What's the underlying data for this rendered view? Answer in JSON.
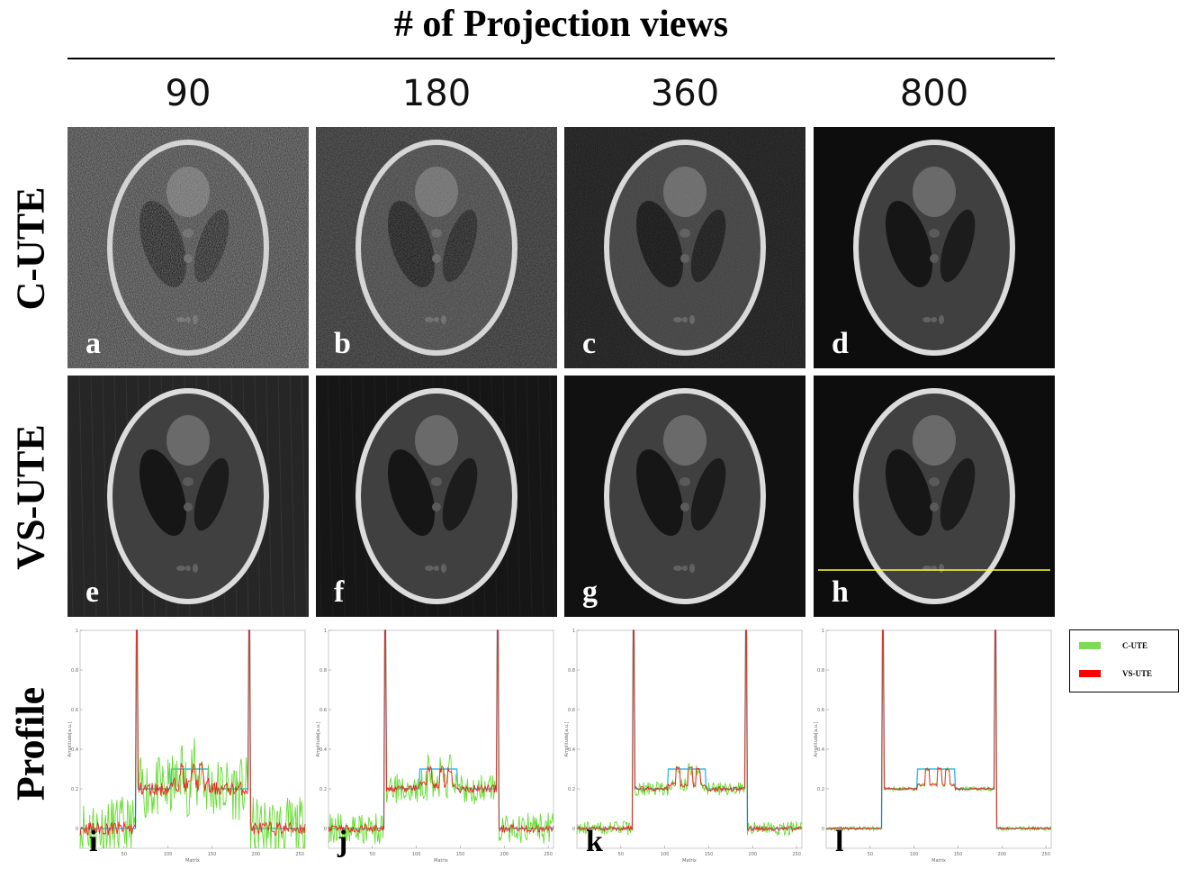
{
  "figure": {
    "title": "# of Projection views",
    "columns": [
      "90",
      "180",
      "360",
      "800"
    ],
    "rows": [
      "C-UTE",
      "VS-UTE",
      "Profile"
    ],
    "panel_letters": [
      "a",
      "b",
      "c",
      "d",
      "e",
      "f",
      "g",
      "h",
      "i",
      "j",
      "k",
      "l"
    ],
    "legend": {
      "items": [
        {
          "label": "C-UTE",
          "color": "#7ed957"
        },
        {
          "label": "VS-UTE",
          "color": "#ff0000"
        }
      ]
    }
  },
  "plot_axes": {
    "y_ticks": [
      "0",
      "0.2",
      "0.4",
      "0.6",
      "0.8",
      "1"
    ],
    "x_ticks": [
      "50",
      "100",
      "150",
      "200",
      "250"
    ],
    "xlabel": "Matrix",
    "ylabel": "Amplitude[a.u.]",
    "xlim": [
      0,
      256
    ],
    "ylim": [
      -0.1,
      1.0
    ]
  },
  "colors": {
    "c_ute": "#66dd33",
    "vs_ute": "#ee2222",
    "reference": "#33bbee"
  },
  "chart_data": [
    {
      "type": "line",
      "title": "i",
      "noise_green": 0.16,
      "noise_red": 0.035,
      "x": [
        0,
        256
      ],
      "series": [
        {
          "name": "C-UTE"
        },
        {
          "name": "VS-UTE"
        }
      ]
    },
    {
      "type": "line",
      "title": "j",
      "noise_green": 0.08,
      "noise_red": 0.02,
      "x": [
        0,
        256
      ],
      "series": [
        {
          "name": "C-UTE"
        },
        {
          "name": "VS-UTE"
        }
      ]
    },
    {
      "type": "line",
      "title": "k",
      "noise_green": 0.035,
      "noise_red": 0.012,
      "x": [
        0,
        256
      ],
      "series": [
        {
          "name": "C-UTE"
        },
        {
          "name": "VS-UTE"
        }
      ]
    },
    {
      "type": "line",
      "title": "l",
      "noise_green": 0.01,
      "noise_red": 0.006,
      "x": [
        0,
        256
      ],
      "series": [
        {
          "name": "C-UTE"
        },
        {
          "name": "VS-UTE"
        }
      ]
    }
  ]
}
